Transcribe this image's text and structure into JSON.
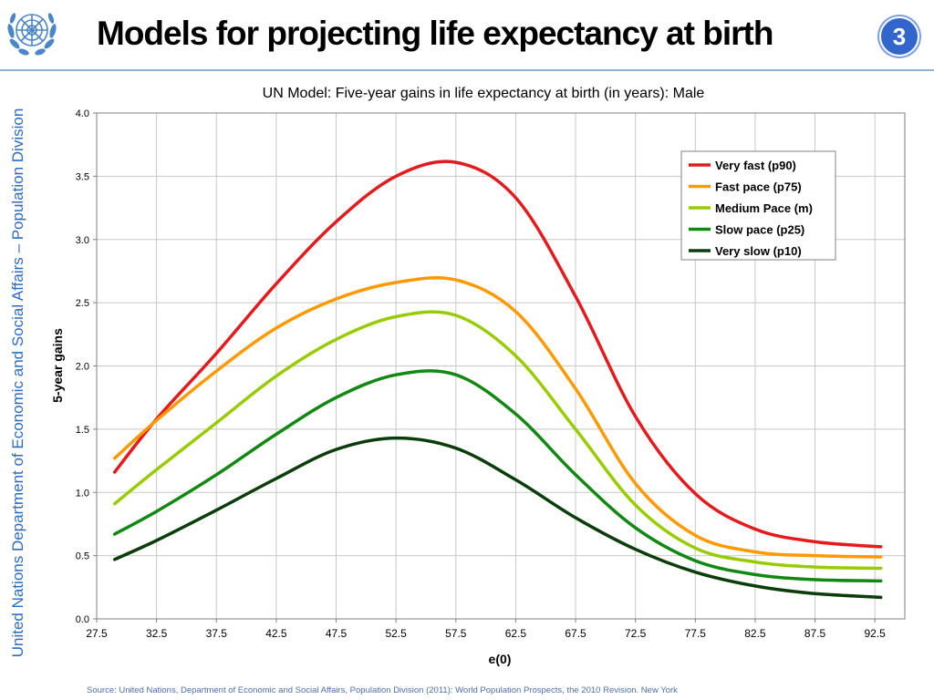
{
  "header": {
    "title": "Models for projecting life expectancy at birth",
    "slide_number": "3"
  },
  "sidebar": {
    "vertical_text": "United Nations Department of Economic and Social Affairs – Population Division"
  },
  "footer": {
    "source": "Source: United Nations, Department of Economic and Social Affairs, Population Division (2011): World Population Prospects, the 2010 Revision. New York"
  },
  "colors": {
    "accent_blue": "#2e6bbd",
    "badge_blue": "#3366cc"
  },
  "chart_data": {
    "type": "line",
    "title": "UN Model: Five-year gains in life expectancy at birth (in years): Male",
    "xlabel": "e(0)",
    "ylabel": "5-year gains",
    "xlim": [
      27.5,
      95
    ],
    "ylim": [
      0,
      4
    ],
    "x_ticks": [
      "27.5",
      "32.5",
      "37.5",
      "42.5",
      "47.5",
      "52.5",
      "57.5",
      "62.5",
      "67.5",
      "72.5",
      "77.5",
      "82.5",
      "87.5",
      "92.5"
    ],
    "y_ticks": [
      "0.0",
      "0.5",
      "1.0",
      "1.5",
      "2.0",
      "2.5",
      "3.0",
      "3.5",
      "4.0"
    ],
    "grid": true,
    "legend_position": "top-right",
    "x": [
      29,
      32.5,
      37.5,
      42.5,
      47.5,
      52.5,
      57.5,
      62.5,
      67.5,
      72.5,
      77.5,
      82.5,
      87.5,
      93
    ],
    "series": [
      {
        "name": "Very fast (p90)",
        "color": "#e41a1c",
        "values": [
          1.16,
          1.58,
          2.1,
          2.65,
          3.14,
          3.5,
          3.61,
          3.33,
          2.55,
          1.6,
          0.99,
          0.71,
          0.61,
          0.57
        ]
      },
      {
        "name": "Fast pace (p75)",
        "color": "#ff9900",
        "values": [
          1.27,
          1.57,
          1.96,
          2.3,
          2.53,
          2.66,
          2.68,
          2.43,
          1.82,
          1.07,
          0.66,
          0.53,
          0.5,
          0.49
        ]
      },
      {
        "name": "Medium Pace (m)",
        "color": "#99cc00",
        "values": [
          0.91,
          1.18,
          1.55,
          1.92,
          2.21,
          2.39,
          2.4,
          2.08,
          1.5,
          0.9,
          0.56,
          0.45,
          0.41,
          0.4
        ]
      },
      {
        "name": "Slow pace (p25)",
        "color": "#118811",
        "values": [
          0.67,
          0.85,
          1.14,
          1.46,
          1.75,
          1.93,
          1.93,
          1.62,
          1.14,
          0.72,
          0.46,
          0.35,
          0.31,
          0.3
        ]
      },
      {
        "name": "Very slow (p10)",
        "color": "#0b3d0b",
        "values": [
          0.47,
          0.62,
          0.86,
          1.11,
          1.34,
          1.43,
          1.35,
          1.1,
          0.8,
          0.55,
          0.37,
          0.26,
          0.2,
          0.17
        ]
      }
    ]
  }
}
